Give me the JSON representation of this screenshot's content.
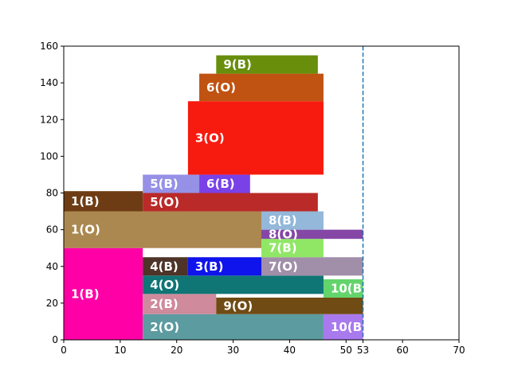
{
  "chart_data": {
    "type": "bar",
    "xlim": [
      0,
      70
    ],
    "ylim": [
      0,
      160
    ],
    "x_ticks": [
      0,
      10,
      20,
      30,
      40,
      50,
      53,
      60,
      70
    ],
    "y_ticks": [
      0,
      20,
      40,
      60,
      80,
      100,
      120,
      140,
      160
    ],
    "reference_line": {
      "x": 53,
      "style": "dashed",
      "color": "#1f77b4"
    },
    "grid": false,
    "rects": [
      {
        "label": "1(B)",
        "x0": 0,
        "x1": 14,
        "y0": 0,
        "y1": 50,
        "color": "#ff00a6"
      },
      {
        "label": "2(O)",
        "x0": 14,
        "x1": 46,
        "y0": 0,
        "y1": 14,
        "color": "#5c9ba0"
      },
      {
        "label": "10(B)",
        "x0": 46,
        "x1": 53,
        "y0": 0,
        "y1": 14,
        "color": "#a979ee"
      },
      {
        "label": "2(B)",
        "x0": 14,
        "x1": 27,
        "y0": 14,
        "y1": 25,
        "color": "#cf8a9c"
      },
      {
        "label": "9(O)",
        "x0": 27,
        "x1": 53,
        "y0": 14,
        "y1": 23,
        "color": "#704b13"
      },
      {
        "label": "10(B)",
        "x0": 46,
        "x1": 53,
        "y0": 23,
        "y1": 33,
        "color": "#62d46b"
      },
      {
        "label": "4(O)",
        "x0": 14,
        "x1": 46,
        "y0": 25,
        "y1": 35,
        "color": "#0f7575"
      },
      {
        "label": "4(B)",
        "x0": 14,
        "x1": 22,
        "y0": 35,
        "y1": 45,
        "color": "#4e3328"
      },
      {
        "label": "3(B)",
        "x0": 22,
        "x1": 35,
        "y0": 35,
        "y1": 45,
        "color": "#0f14ec"
      },
      {
        "label": "7(O)",
        "x0": 35,
        "x1": 53,
        "y0": 35,
        "y1": 45,
        "color": "#a18ea9"
      },
      {
        "label": "7(B)",
        "x0": 35,
        "x1": 46,
        "y0": 45,
        "y1": 55,
        "color": "#90e766"
      },
      {
        "label": "1(O)",
        "x0": 0,
        "x1": 35,
        "y0": 50,
        "y1": 70,
        "color": "#ab884f"
      },
      {
        "label": "8(O)",
        "x0": 35,
        "x1": 53,
        "y0": 55,
        "y1": 60,
        "color": "#8547a6"
      },
      {
        "label": "8(B)",
        "x0": 35,
        "x1": 46,
        "y0": 60,
        "y1": 70,
        "color": "#93b8d9"
      },
      {
        "label": "1(B)",
        "x0": 0,
        "x1": 14,
        "y0": 70,
        "y1": 81,
        "color": "#6e3c14"
      },
      {
        "label": "5(O)",
        "x0": 14,
        "x1": 45,
        "y0": 70,
        "y1": 80,
        "color": "#ba2a28"
      },
      {
        "label": "5(B)",
        "x0": 14,
        "x1": 24,
        "y0": 80,
        "y1": 90,
        "color": "#9691e6"
      },
      {
        "label": "6(B)",
        "x0": 24,
        "x1": 33,
        "y0": 80,
        "y1": 90,
        "color": "#7a41e7"
      },
      {
        "label": "3(O)",
        "x0": 22,
        "x1": 46,
        "y0": 90,
        "y1": 130,
        "color": "#f71a0f"
      },
      {
        "label": "6(O)",
        "x0": 24,
        "x1": 46,
        "y0": 130,
        "y1": 145,
        "color": "#c05212"
      },
      {
        "label": "9(B)",
        "x0": 27,
        "x1": 45,
        "y0": 145,
        "y1": 155,
        "color": "#688e0c"
      }
    ]
  }
}
